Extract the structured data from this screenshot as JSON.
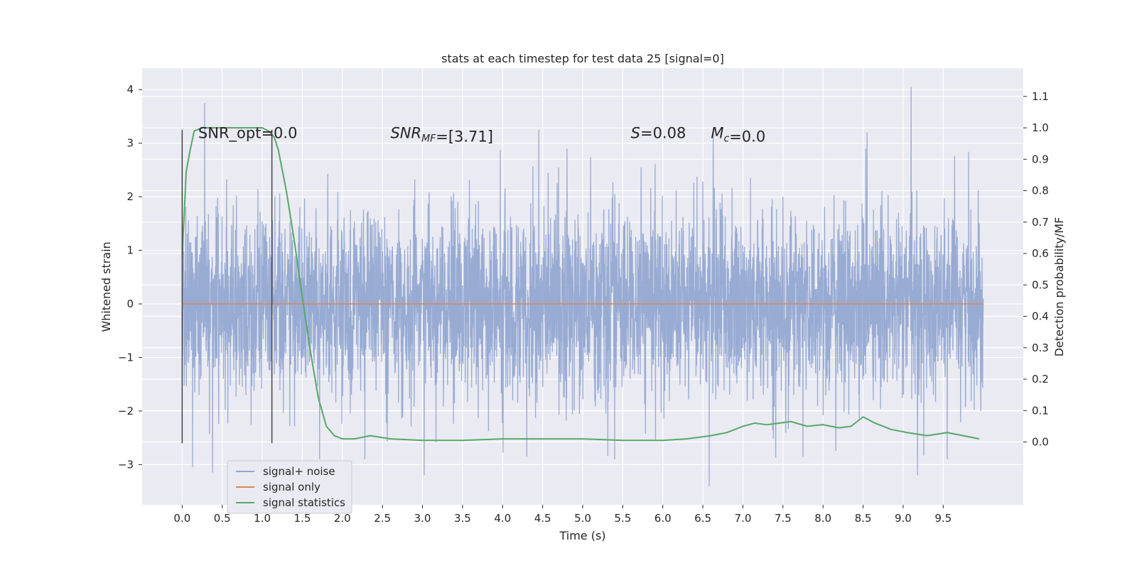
{
  "chart_data": {
    "type": "line",
    "title": "stats at each timestep for test data 25 [signal=0]",
    "xlabel": "Time (s)",
    "ylabel": "Whitened strain",
    "ylabel_right": "Detection probability/MF",
    "xlim": [
      -0.5,
      10.5
    ],
    "ylim": [
      -3.75,
      4.4
    ],
    "ylim_right": [
      -0.2,
      1.19
    ],
    "x_ticks": [
      0.0,
      0.5,
      1.0,
      1.5,
      2.0,
      2.5,
      3.0,
      3.5,
      4.0,
      4.5,
      5.0,
      5.5,
      6.0,
      6.5,
      7.0,
      7.5,
      8.0,
      8.5,
      9.0,
      9.5
    ],
    "x_tick_labels": [
      "0.0",
      "0.5",
      "1.0",
      "1.5",
      "2.0",
      "2.5",
      "3.0",
      "3.5",
      "4.0",
      "4.5",
      "5.0",
      "5.5",
      "6.0",
      "6.5",
      "7.0",
      "7.5",
      "8.0",
      "8.5",
      "9.0",
      "9.5"
    ],
    "y_ticks": [
      -3,
      -2,
      -1,
      0,
      1,
      2,
      3,
      4
    ],
    "y_tick_labels": [
      "−3",
      "−2",
      "−1",
      "0",
      "1",
      "2",
      "3",
      "4"
    ],
    "y_right_ticks": [
      0.0,
      0.1,
      0.2,
      0.3,
      0.4,
      0.5,
      0.6,
      0.7,
      0.8,
      0.9,
      1.0,
      1.1
    ],
    "y_right_tick_labels": [
      "0.0",
      "0.1",
      "0.2",
      "0.3",
      "0.4",
      "0.5",
      "0.6",
      "0.7",
      "0.8",
      "0.9",
      "1.0",
      "1.1"
    ],
    "grid": true,
    "legend_position": "lower-left",
    "series": [
      {
        "name": "signal+ noise",
        "color": "#8fa4cf",
        "axis": "left",
        "kind": "noise",
        "x_range": [
          0.0,
          10.0
        ],
        "noise_sigma": 0.85,
        "noise_peaks": [
          {
            "x": 0.28,
            "y": 3.75
          },
          {
            "x": 0.13,
            "y": -3.05
          },
          {
            "x": 0.38,
            "y": -3.15
          },
          {
            "x": 9.1,
            "y": 4.05
          },
          {
            "x": 9.18,
            "y": -3.2
          },
          {
            "x": 3.02,
            "y": -3.2
          },
          {
            "x": 6.58,
            "y": -3.4
          },
          {
            "x": 6.63,
            "y": 3.25
          },
          {
            "x": 4.45,
            "y": 3.25
          },
          {
            "x": 8.55,
            "y": 3.2
          },
          {
            "x": 9.55,
            "y": -2.9
          },
          {
            "x": 7.75,
            "y": -2.85
          },
          {
            "x": 5.4,
            "y": -2.9
          },
          {
            "x": 4.3,
            "y": -2.85
          }
        ]
      },
      {
        "name": "signal only",
        "color": "#dd8452",
        "axis": "left",
        "x": [
          0.0,
          10.0
        ],
        "y": [
          0.0,
          0.0
        ]
      },
      {
        "name": "signal statistics",
        "color": "#55a868",
        "axis": "right",
        "x": [
          0.0,
          0.05,
          0.1,
          0.15,
          0.25,
          0.4,
          0.6,
          0.8,
          1.0,
          1.08,
          1.15,
          1.2,
          1.3,
          1.4,
          1.5,
          1.6,
          1.7,
          1.8,
          1.9,
          2.0,
          2.15,
          2.35,
          2.6,
          3.0,
          3.5,
          4.0,
          4.5,
          5.0,
          5.5,
          6.0,
          6.3,
          6.6,
          6.8,
          7.0,
          7.15,
          7.3,
          7.45,
          7.6,
          7.8,
          8.0,
          8.2,
          8.35,
          8.5,
          8.65,
          8.85,
          9.05,
          9.3,
          9.55,
          9.75,
          9.95
        ],
        "y": [
          0.59,
          0.86,
          0.93,
          0.99,
          1.0,
          1.0,
          1.0,
          1.0,
          1.0,
          0.99,
          0.97,
          0.93,
          0.8,
          0.64,
          0.46,
          0.29,
          0.14,
          0.05,
          0.02,
          0.01,
          0.01,
          0.02,
          0.01,
          0.005,
          0.005,
          0.01,
          0.01,
          0.01,
          0.005,
          0.005,
          0.01,
          0.02,
          0.03,
          0.05,
          0.06,
          0.055,
          0.06,
          0.065,
          0.05,
          0.055,
          0.045,
          0.05,
          0.08,
          0.06,
          0.04,
          0.03,
          0.02,
          0.03,
          0.02,
          0.01
        ]
      }
    ],
    "vlines": [
      {
        "x": 0.0,
        "y_from": -2.6,
        "y_to": 3.25,
        "color": "#444444"
      },
      {
        "x": 1.12,
        "y_from": -2.6,
        "y_to": 3.25,
        "color": "#444444"
      }
    ],
    "annotations": [
      {
        "parts": [
          {
            "text": "SNR_opt=0.0",
            "italic": false
          }
        ],
        "x": 0.2,
        "y": 3.2
      },
      {
        "parts": [
          {
            "text": "SNR",
            "italic": true
          },
          {
            "text": "MF",
            "italic": true,
            "sub": true
          },
          {
            "text": "=[3.71]",
            "italic": false
          }
        ],
        "x": 2.6,
        "y": 3.2
      },
      {
        "parts": [
          {
            "text": "S",
            "italic": true
          },
          {
            "text": "=0.08",
            "italic": false
          }
        ],
        "x": 5.6,
        "y": 3.2
      },
      {
        "parts": [
          {
            "text": "M",
            "italic": true
          },
          {
            "text": "c",
            "italic": true,
            "sub": true
          },
          {
            "text": "=0.0",
            "italic": false
          }
        ],
        "x": 6.6,
        "y": 3.2
      }
    ]
  }
}
